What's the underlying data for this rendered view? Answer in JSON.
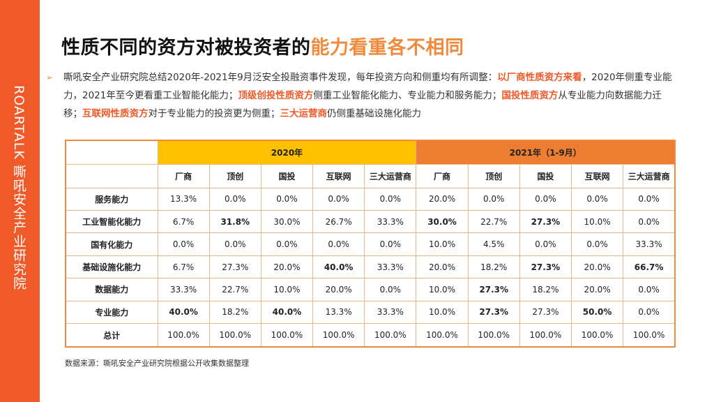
{
  "sidebar": {
    "text": "ROARTALK 嘶吼安全产业研究院"
  },
  "title": {
    "part1": "性质不同的资方对被投资者的",
    "part2": "能力看重各不相同"
  },
  "summary": {
    "bullet": "➢",
    "t1": "嘶吼安全产业研究院总结2020年-2021年9月泛安全投融资事件发现，每年投资方向和侧重均有所调整：",
    "e1": "以厂商性质资方来看",
    "t2": "，2020年侧重专业能力，2021年至今更看重工业智能化能力；",
    "e2": "顶级创投性质资方",
    "t3": "侧重工业智能化能力、专业能力和服务能力；",
    "e3": "国投性质资方",
    "t4": "从专业能力向数据能力迁移；",
    "e4": "互联网性质资方",
    "t5": "对于专业能力的投资更为侧重；",
    "e5": "三大运营商",
    "t6": "仍侧重基础设施化能力"
  },
  "table": {
    "year_2020": "2020年",
    "year_2021": "2021年（1-9月）",
    "columns": [
      "厂商",
      "顶创",
      "国投",
      "互联网",
      "三大运营商",
      "厂商",
      "顶创",
      "国投",
      "互联网",
      "三大运营商"
    ],
    "rows": [
      {
        "label": "服务能力",
        "values": [
          "13.3%",
          "0.0%",
          "0.0%",
          "0.0%",
          "0.0%",
          "20.0%",
          "0.0%",
          "0.0%",
          "0.0%",
          "0.0%"
        ]
      },
      {
        "label": "工业智能化能力",
        "values": [
          "6.7%",
          "31.8%",
          "30.0%",
          "26.7%",
          "33.3%",
          "30.0%",
          "22.7%",
          "27.3%",
          "10.0%",
          "0.0%"
        ]
      },
      {
        "label": "国有化能力",
        "values": [
          "0.0%",
          "0.0%",
          "0.0%",
          "0.0%",
          "0.0%",
          "10.0%",
          "4.5%",
          "0.0%",
          "0.0%",
          "33.3%"
        ]
      },
      {
        "label": "基础设施化能力",
        "values": [
          "6.7%",
          "27.3%",
          "20.0%",
          "40.0%",
          "33.3%",
          "20.0%",
          "18.2%",
          "27.3%",
          "20.0%",
          "66.7%"
        ]
      },
      {
        "label": "数据能力",
        "values": [
          "33.3%",
          "22.7%",
          "10.0%",
          "20.0%",
          "0.0%",
          "10.0%",
          "27.3%",
          "18.2%",
          "20.0%",
          "0.0%"
        ]
      },
      {
        "label": "专业能力",
        "values": [
          "40.0%",
          "18.2%",
          "40.0%",
          "13.3%",
          "33.3%",
          "10.0%",
          "27.3%",
          "27.3%",
          "50.0%",
          "0.0%"
        ]
      },
      {
        "label": "总计",
        "values": [
          "100.0%",
          "100.0%",
          "100.0%",
          "100.0%",
          "100.0%",
          "100.0%",
          "100.0%",
          "100.0%",
          "100.0%",
          "100.0%"
        ]
      }
    ],
    "bold_cells": [
      [
        1,
        1
      ],
      [
        1,
        5
      ],
      [
        1,
        7
      ],
      [
        3,
        3
      ],
      [
        3,
        7
      ],
      [
        3,
        9
      ],
      [
        4,
        6
      ],
      [
        5,
        0
      ],
      [
        5,
        2
      ],
      [
        5,
        6
      ],
      [
        5,
        8
      ]
    ]
  },
  "source": "数据来源：嘶吼安全产业研究院根据公开收集数据整理"
}
